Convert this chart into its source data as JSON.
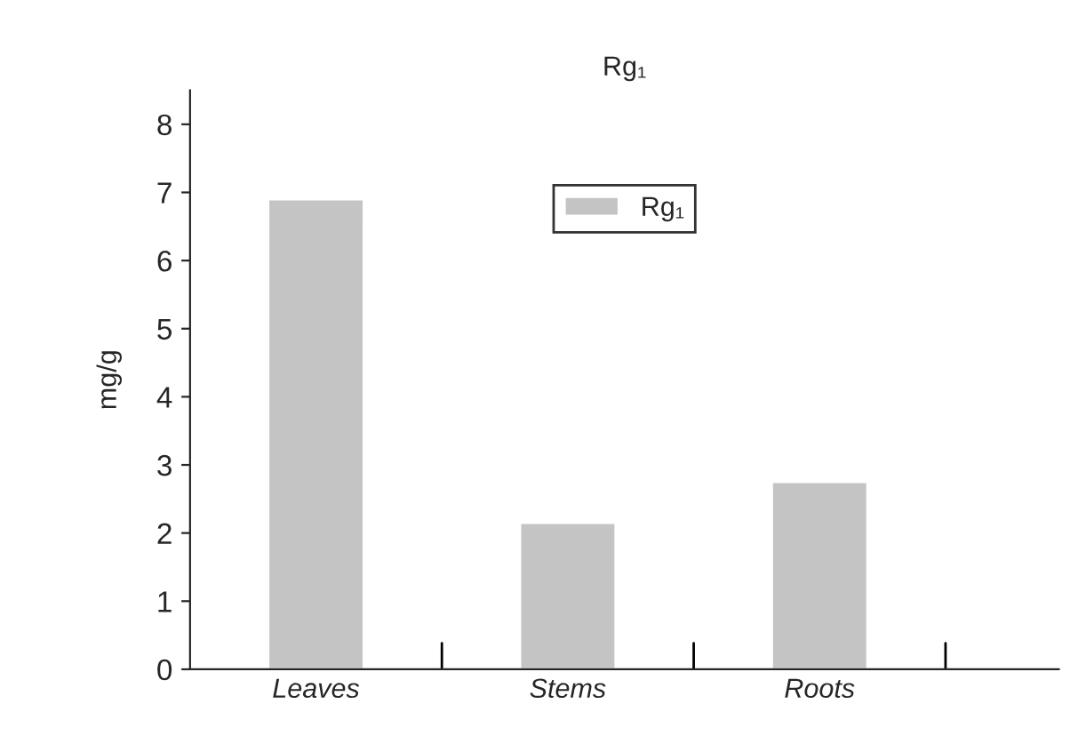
{
  "chart_data": {
    "type": "bar",
    "title": "Rg₁",
    "ylabel": "mg/g",
    "categories": [
      "Leaves",
      "Stems",
      "Roots"
    ],
    "series": [
      {
        "name": "Rg₁",
        "color": "#c4c4c4",
        "values": [
          6.9,
          2.15,
          2.75
        ]
      }
    ],
    "ylim": [
      0,
      8.5
    ],
    "yticks": [
      0,
      1,
      2,
      3,
      4,
      5,
      6,
      7,
      8
    ],
    "grid": false,
    "legend": "top"
  }
}
